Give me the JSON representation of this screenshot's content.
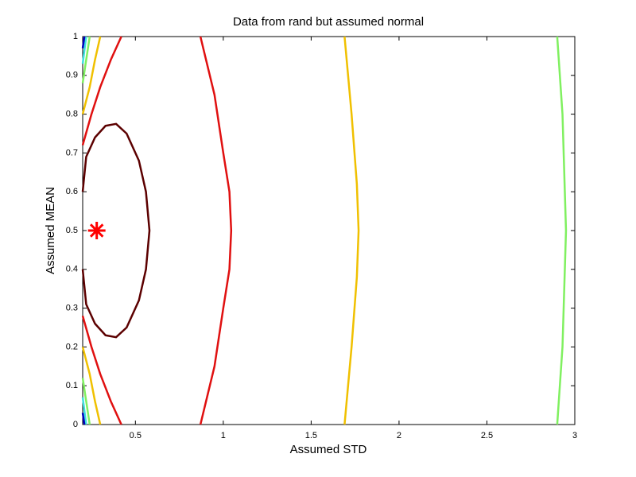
{
  "chart_data": {
    "type": "contour",
    "title": "Data from rand but assumed normal",
    "xlabel": "Assumed STD",
    "ylabel": "Assumed MEAN",
    "xlim": [
      0.2,
      3
    ],
    "ylim": [
      0,
      1
    ],
    "xticks": [
      0.5,
      1,
      1.5,
      2,
      2.5,
      3
    ],
    "yticks": [
      0,
      0.1,
      0.2,
      0.3,
      0.4,
      0.5,
      0.6,
      0.7,
      0.8,
      0.9,
      1
    ],
    "series": [
      {
        "color": "#5c0000",
        "x": [
          0.2,
          0.22,
          0.27,
          0.33,
          0.39,
          0.45,
          0.52,
          0.56,
          0.58,
          0.56,
          0.52,
          0.45,
          0.39,
          0.33,
          0.27,
          0.22,
          0.2
        ],
        "y": [
          0.6,
          0.69,
          0.74,
          0.77,
          0.775,
          0.75,
          0.68,
          0.6,
          0.5,
          0.4,
          0.32,
          0.25,
          0.225,
          0.23,
          0.26,
          0.31,
          0.4
        ]
      },
      {
        "color": "#e01010",
        "x": [
          0.2,
          0.25,
          0.3,
          0.36,
          0.42,
          null,
          0.2,
          0.25,
          0.3,
          0.36,
          0.42,
          null,
          0.87,
          0.95,
          1.0,
          1.035,
          1.045,
          1.035,
          1.0,
          0.95,
          0.87
        ],
        "y": [
          0.72,
          0.8,
          0.87,
          0.94,
          1,
          null,
          0.28,
          0.2,
          0.13,
          0.06,
          0,
          null,
          1,
          0.85,
          0.7,
          0.6,
          0.5,
          0.4,
          0.3,
          0.15,
          0
        ]
      },
      {
        "color": "#f0c000",
        "x": [
          0.2,
          0.24,
          0.27,
          0.3,
          null,
          0.2,
          0.24,
          0.27,
          0.3,
          null,
          1.69,
          1.73,
          1.76,
          1.77,
          1.76,
          1.73,
          1.69
        ],
        "y": [
          0.8,
          0.87,
          0.94,
          1,
          null,
          0.2,
          0.13,
          0.06,
          0,
          null,
          1,
          0.8,
          0.62,
          0.5,
          0.38,
          0.2,
          0
        ]
      },
      {
        "color": "#80f060",
        "x": [
          0.2,
          0.22,
          0.24,
          null,
          0.2,
          0.22,
          0.24,
          null,
          2.9,
          2.93,
          2.95,
          2.93,
          2.9
        ],
        "y": [
          0.88,
          0.94,
          1,
          null,
          0.12,
          0.06,
          0,
          null,
          1,
          0.8,
          0.5,
          0.2,
          0
        ]
      },
      {
        "color": "#40e0e0",
        "x": [
          0.2,
          0.21,
          0.22,
          null,
          0.2,
          0.21,
          0.22
        ],
        "y": [
          0.93,
          0.965,
          1,
          null,
          0.07,
          0.035,
          0
        ]
      },
      {
        "color": "#0000c0",
        "x": [
          0.2,
          0.21,
          null,
          0.2,
          0.21
        ],
        "y": [
          0.97,
          1,
          null,
          0.03,
          0
        ]
      }
    ],
    "marker": {
      "x": 0.28,
      "y": 0.5,
      "color": "#ff0000"
    }
  }
}
